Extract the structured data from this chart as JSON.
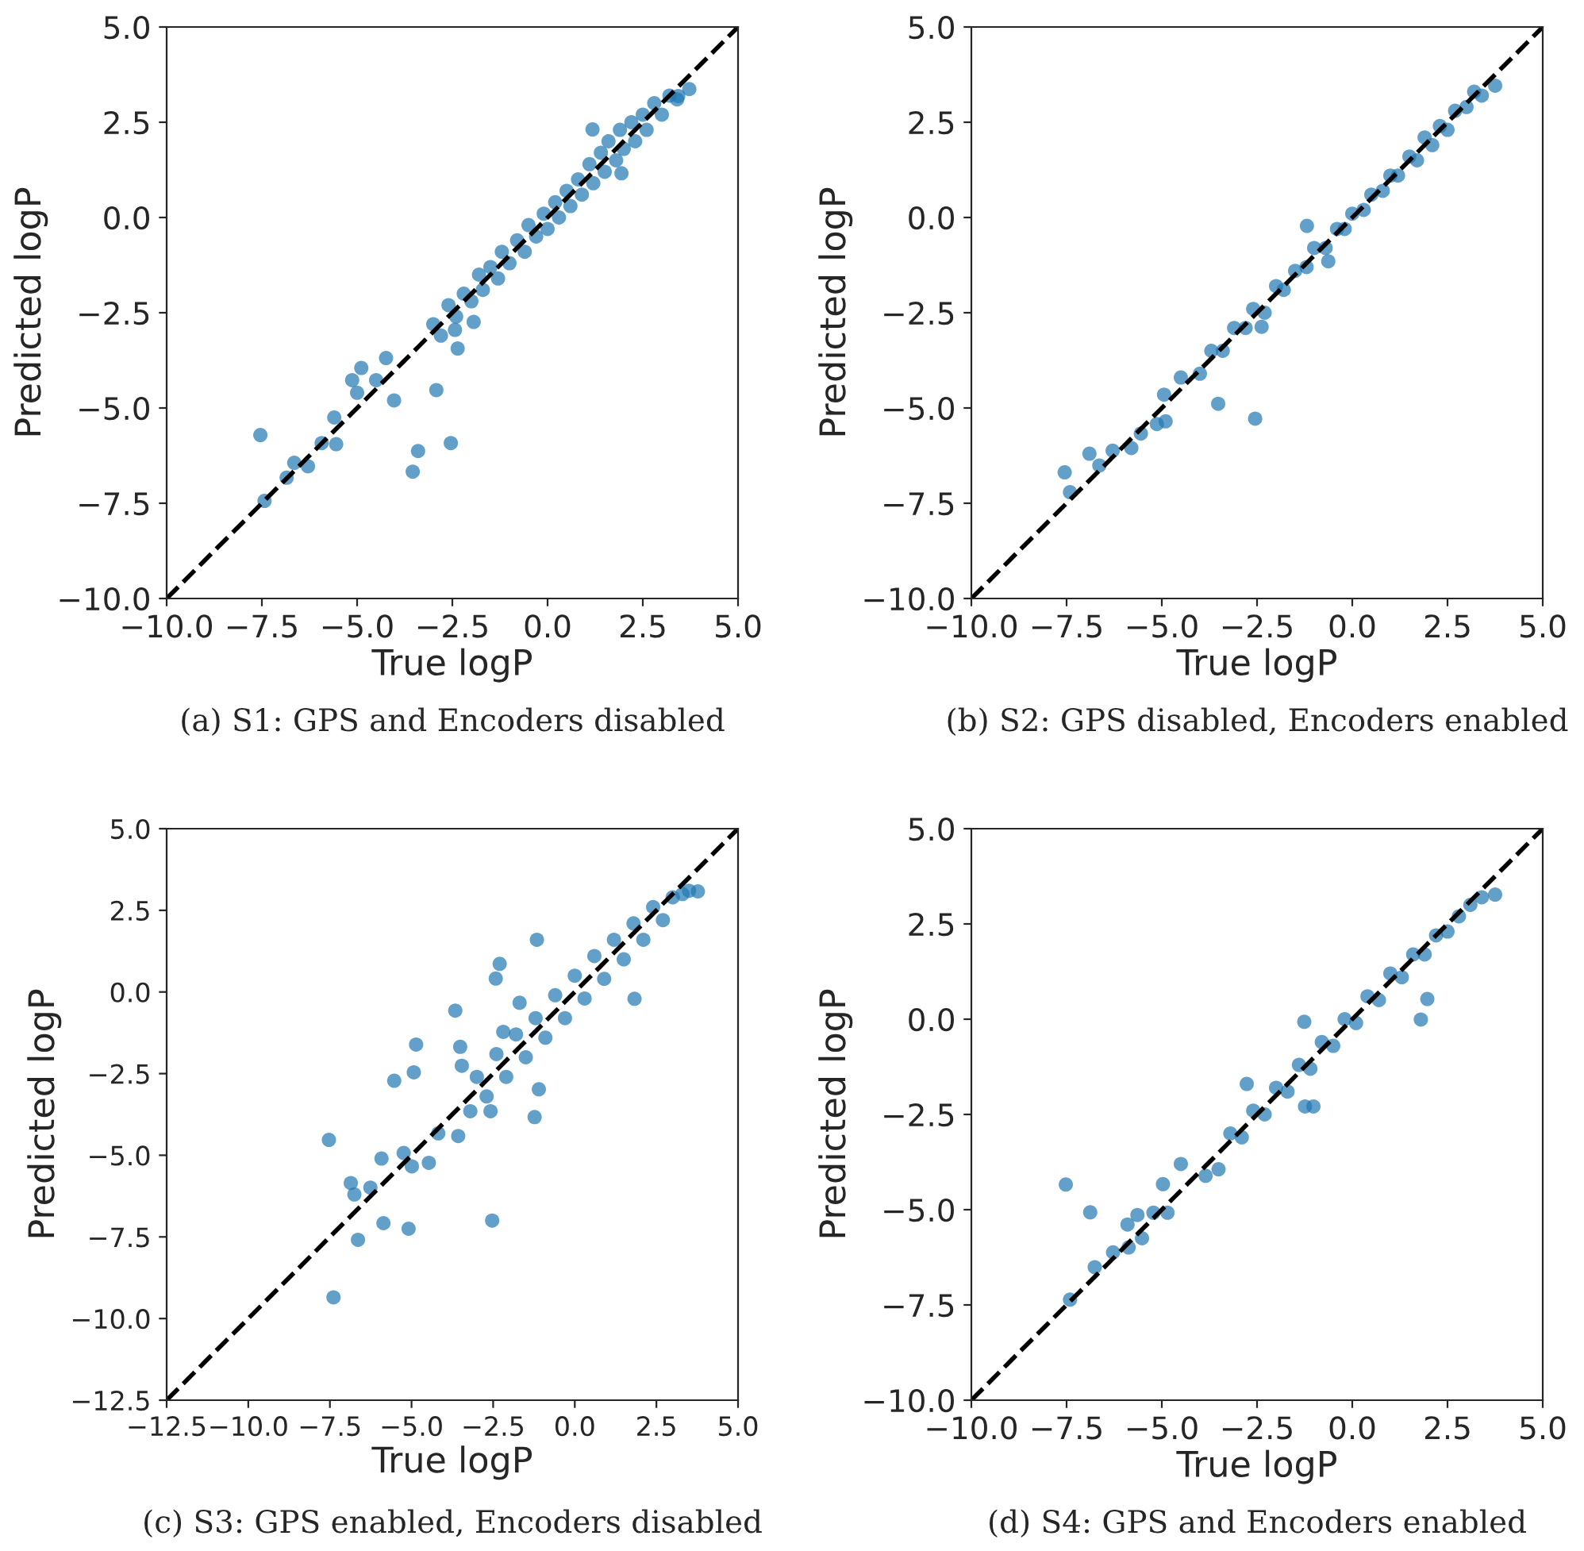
{
  "chart_data": [
    {
      "type": "scatter",
      "title": "(a) S1: GPS and Encoders disabled",
      "xlabel": "True logP",
      "ylabel": "Predicted logP",
      "xlim": [
        -10,
        5
      ],
      "ylim": [
        -10,
        5
      ],
      "xticks": [
        {
          "value": -10,
          "label": "−10.0"
        },
        {
          "value": -7.5,
          "label": "−7.5"
        },
        {
          "value": -5,
          "label": "−5.0"
        },
        {
          "value": -2.5,
          "label": "−2.5"
        },
        {
          "value": 0,
          "label": "0.0"
        },
        {
          "value": 2.5,
          "label": "2.5"
        },
        {
          "value": 5,
          "label": "5.0"
        }
      ],
      "yticks": [
        {
          "value": -10,
          "label": "−10.0"
        },
        {
          "value": -7.5,
          "label": "−7.5"
        },
        {
          "value": -5,
          "label": "−5.0"
        },
        {
          "value": -2.5,
          "label": "−2.5"
        },
        {
          "value": 0,
          "label": "0.0"
        },
        {
          "value": 2.5,
          "label": "2.5"
        },
        {
          "value": 5,
          "label": "5.0"
        }
      ],
      "grid": false,
      "series": [
        {
          "type": "scatter",
          "color": "#1f77b4",
          "marker": "circle",
          "x": [
            -7.54,
            -7.43,
            -3.54,
            -3.4,
            -2.54,
            -2.92,
            -4.03,
            -4.89,
            -5.13,
            -4.24,
            -5.6,
            -5.55,
            -5.93,
            -6.29,
            -6.65,
            -6.85,
            -2.36,
            -1.94,
            -2.43,
            -5.0,
            -4.5,
            3.72,
            3.43,
            1.94,
            1.18,
            -3.0,
            -2.8,
            -2.6,
            -2.4,
            -2.2,
            -2.0,
            -1.8,
            -1.7,
            -1.5,
            -1.3,
            -1.2,
            -1.0,
            -0.8,
            -0.6,
            -0.5,
            -0.3,
            -0.1,
            0.0,
            0.2,
            0.3,
            0.5,
            0.6,
            0.8,
            0.9,
            1.1,
            1.2,
            1.4,
            1.5,
            1.6,
            1.8,
            1.9,
            2.0,
            2.2,
            2.3,
            2.5,
            2.6,
            2.8,
            3.0,
            3.2,
            3.4
          ],
          "values": [
            -5.71,
            -7.44,
            -6.67,
            -6.13,
            -5.92,
            -4.53,
            -4.8,
            -3.95,
            -4.27,
            -3.69,
            -5.25,
            -5.95,
            -5.92,
            -6.53,
            -6.44,
            -6.83,
            -3.44,
            -2.74,
            -2.95,
            -4.6,
            -4.27,
            3.37,
            3.19,
            1.16,
            2.31,
            -2.8,
            -3.1,
            -2.3,
            -2.6,
            -2.0,
            -2.2,
            -1.5,
            -1.9,
            -1.3,
            -1.6,
            -0.9,
            -1.2,
            -0.6,
            -0.9,
            -0.2,
            -0.5,
            0.1,
            -0.3,
            0.4,
            0.0,
            0.7,
            0.3,
            1.0,
            0.6,
            1.4,
            0.9,
            1.7,
            1.2,
            2.0,
            1.5,
            2.3,
            1.8,
            2.5,
            2.0,
            2.7,
            2.3,
            3.0,
            2.7,
            3.2,
            3.1
          ]
        },
        {
          "type": "line",
          "color": "#000000",
          "line_style": "dashed",
          "marker": "none",
          "x": [
            -10,
            5
          ],
          "values": [
            -10,
            5
          ]
        }
      ]
    },
    {
      "type": "scatter",
      "title": "(b) S2: GPS disabled, Encoders enabled",
      "xlabel": "True logP",
      "ylabel": "Predicted logP",
      "xlim": [
        -10,
        5
      ],
      "ylim": [
        -10,
        5
      ],
      "xticks": [
        {
          "value": -10,
          "label": "−10.0"
        },
        {
          "value": -7.5,
          "label": "−7.5"
        },
        {
          "value": -5,
          "label": "−5.0"
        },
        {
          "value": -2.5,
          "label": "−2.5"
        },
        {
          "value": 0,
          "label": "0.0"
        },
        {
          "value": 2.5,
          "label": "2.5"
        },
        {
          "value": 5,
          "label": "5.0"
        }
      ],
      "yticks": [
        {
          "value": -10,
          "label": "−10.0"
        },
        {
          "value": -7.5,
          "label": "−7.5"
        },
        {
          "value": -5,
          "label": "−5.0"
        },
        {
          "value": -2.5,
          "label": "−2.5"
        },
        {
          "value": 0,
          "label": "0.0"
        },
        {
          "value": 2.5,
          "label": "2.5"
        },
        {
          "value": 5,
          "label": "5.0"
        }
      ],
      "grid": false,
      "series": [
        {
          "type": "scatter",
          "color": "#1f77b4",
          "marker": "circle",
          "x": [
            -7.55,
            -7.41,
            -6.9,
            -6.64,
            -6.29,
            -5.8,
            -5.55,
            -5.13,
            -4.9,
            -4.94,
            -4.5,
            -3.52,
            -2.55,
            -1.19,
            -0.63,
            -2.38,
            3.75,
            -4.0,
            -3.7,
            -3.4,
            -3.1,
            -2.8,
            -2.6,
            -2.3,
            -2.0,
            -1.8,
            -1.5,
            -1.2,
            -1.0,
            -0.7,
            -0.4,
            -0.2,
            0.0,
            0.3,
            0.5,
            0.8,
            1.0,
            1.2,
            1.5,
            1.7,
            1.9,
            2.1,
            2.3,
            2.5,
            2.7,
            3.0,
            3.2,
            3.4
          ],
          "values": [
            -6.69,
            -7.21,
            -6.2,
            -6.51,
            -6.12,
            -6.05,
            -5.67,
            -5.42,
            -5.35,
            -4.65,
            -4.2,
            -4.89,
            -5.28,
            -0.22,
            -1.15,
            -2.87,
            3.46,
            -4.1,
            -3.5,
            -3.5,
            -2.9,
            -2.9,
            -2.4,
            -2.5,
            -1.8,
            -1.9,
            -1.4,
            -1.3,
            -0.8,
            -0.8,
            -0.3,
            -0.3,
            0.1,
            0.2,
            0.6,
            0.7,
            1.1,
            1.1,
            1.6,
            1.5,
            2.1,
            1.9,
            2.4,
            2.3,
            2.8,
            2.9,
            3.3,
            3.2
          ]
        },
        {
          "type": "line",
          "color": "#000000",
          "line_style": "dashed",
          "marker": "none",
          "x": [
            -10,
            5
          ],
          "values": [
            -10,
            5
          ]
        }
      ]
    },
    {
      "type": "scatter",
      "title": "(c) S3: GPS enabled, Encoders disabled",
      "xlabel": "True logP",
      "ylabel": "Predicted logP",
      "xlim": [
        -12.5,
        5
      ],
      "ylim": [
        -12.5,
        5
      ],
      "xticks": [
        {
          "value": -12.5,
          "label": "−12.5"
        },
        {
          "value": -10,
          "label": "−10.0"
        },
        {
          "value": -7.5,
          "label": "−7.5"
        },
        {
          "value": -5,
          "label": "−5.0"
        },
        {
          "value": -2.5,
          "label": "−2.5"
        },
        {
          "value": 0,
          "label": "0.0"
        },
        {
          "value": 2.5,
          "label": "2.5"
        },
        {
          "value": 5,
          "label": "5.0"
        }
      ],
      "yticks": [
        {
          "value": -12.5,
          "label": "−12.5"
        },
        {
          "value": -10,
          "label": "−10.0"
        },
        {
          "value": -7.5,
          "label": "−7.5"
        },
        {
          "value": -5,
          "label": "−5.0"
        },
        {
          "value": -2.5,
          "label": "−2.5"
        },
        {
          "value": 0,
          "label": "0.0"
        },
        {
          "value": 2.5,
          "label": "2.5"
        },
        {
          "value": 5,
          "label": "5.0"
        }
      ],
      "grid": false,
      "series": [
        {
          "type": "scatter",
          "color": "#1f77b4",
          "marker": "circle",
          "x": [
            -7.53,
            -7.39,
            -6.86,
            -6.75,
            -6.64,
            -6.26,
            -5.86,
            -5.09,
            -5.92,
            -5.24,
            -4.99,
            -4.47,
            -5.53,
            -4.93,
            -4.86,
            -3.66,
            -3.51,
            -3.46,
            -2.42,
            -2.3,
            -2.53,
            -3.57,
            -4.18,
            -3.2,
            -2.58,
            -1.23,
            -1.1,
            -1.16,
            1.83,
            3.77,
            -1.69,
            -2.19,
            -3.0,
            -2.7,
            -2.4,
            -2.1,
            -1.8,
            -1.5,
            -1.2,
            -0.9,
            -0.6,
            -0.3,
            0.0,
            0.3,
            0.6,
            0.9,
            1.2,
            1.5,
            1.8,
            2.1,
            2.4,
            2.7,
            3.0,
            3.3,
            3.5
          ],
          "values": [
            -4.53,
            -9.35,
            -5.85,
            -6.2,
            -7.59,
            -5.99,
            -7.08,
            -7.25,
            -5.1,
            -4.93,
            -5.34,
            -5.23,
            -2.72,
            -2.46,
            -1.61,
            -0.57,
            -1.68,
            -2.26,
            0.41,
            0.86,
            -7.0,
            -4.41,
            -4.33,
            -3.65,
            -3.65,
            -3.83,
            -2.98,
            1.6,
            -0.21,
            3.08,
            -0.33,
            -1.22,
            -2.6,
            -3.2,
            -1.9,
            -2.6,
            -1.3,
            -2.0,
            -0.8,
            -1.4,
            -0.1,
            -0.8,
            0.5,
            -0.2,
            1.1,
            0.4,
            1.6,
            1.0,
            2.1,
            1.6,
            2.6,
            2.2,
            2.9,
            3.0,
            3.1
          ]
        },
        {
          "type": "line",
          "color": "#000000",
          "line_style": "dashed",
          "marker": "none",
          "x": [
            -12.5,
            5
          ],
          "values": [
            -12.5,
            5
          ]
        }
      ]
    },
    {
      "type": "scatter",
      "title": "(d) S4: GPS and Encoders enabled",
      "xlabel": "True logP",
      "ylabel": "Predicted logP",
      "xlim": [
        -10,
        5
      ],
      "ylim": [
        -10,
        5
      ],
      "xticks": [
        {
          "value": -10,
          "label": "−10.0"
        },
        {
          "value": -7.5,
          "label": "−7.5"
        },
        {
          "value": -5,
          "label": "−5.0"
        },
        {
          "value": -2.5,
          "label": "−2.5"
        },
        {
          "value": 0,
          "label": "0.0"
        },
        {
          "value": 2.5,
          "label": "2.5"
        },
        {
          "value": 5,
          "label": "5.0"
        }
      ],
      "yticks": [
        {
          "value": -10,
          "label": "−10.0"
        },
        {
          "value": -7.5,
          "label": "−7.5"
        },
        {
          "value": -5,
          "label": "−5.0"
        },
        {
          "value": -2.5,
          "label": "−2.5"
        },
        {
          "value": 0,
          "label": "0.0"
        },
        {
          "value": 2.5,
          "label": "2.5"
        },
        {
          "value": 5,
          "label": "5.0"
        }
      ],
      "grid": false,
      "series": [
        {
          "type": "scatter",
          "color": "#1f77b4",
          "marker": "circle",
          "x": [
            -7.52,
            -6.88,
            -7.41,
            -6.76,
            -6.28,
            -5.87,
            -5.9,
            -5.52,
            -5.64,
            -5.22,
            -4.85,
            -4.97,
            -4.5,
            -3.85,
            -3.51,
            -2.77,
            -1.24,
            -1.02,
            1.8,
            1.97,
            3.75,
            -1.26,
            -3.2,
            -2.9,
            -2.6,
            -2.3,
            -2.0,
            -1.7,
            -1.4,
            -1.1,
            -0.8,
            -0.5,
            -0.2,
            0.1,
            0.4,
            0.7,
            1.0,
            1.3,
            1.6,
            1.9,
            2.2,
            2.5,
            2.8,
            3.1,
            3.4
          ],
          "values": [
            -4.34,
            -5.07,
            -7.36,
            -6.51,
            -6.12,
            -5.99,
            -5.39,
            -5.75,
            -5.14,
            -5.08,
            -5.08,
            -4.33,
            -3.8,
            -4.11,
            -3.94,
            -1.7,
            -2.29,
            -2.29,
            -0.01,
            0.53,
            3.27,
            -0.07,
            -3.0,
            -3.1,
            -2.4,
            -2.5,
            -1.8,
            -1.9,
            -1.2,
            -1.3,
            -0.6,
            -0.7,
            0.0,
            -0.1,
            0.6,
            0.5,
            1.2,
            1.1,
            1.7,
            1.7,
            2.2,
            2.3,
            2.7,
            3.0,
            3.2
          ]
        },
        {
          "type": "line",
          "color": "#000000",
          "line_style": "dashed",
          "marker": "none",
          "x": [
            -10,
            5
          ],
          "values": [
            -10,
            5
          ]
        }
      ]
    }
  ]
}
